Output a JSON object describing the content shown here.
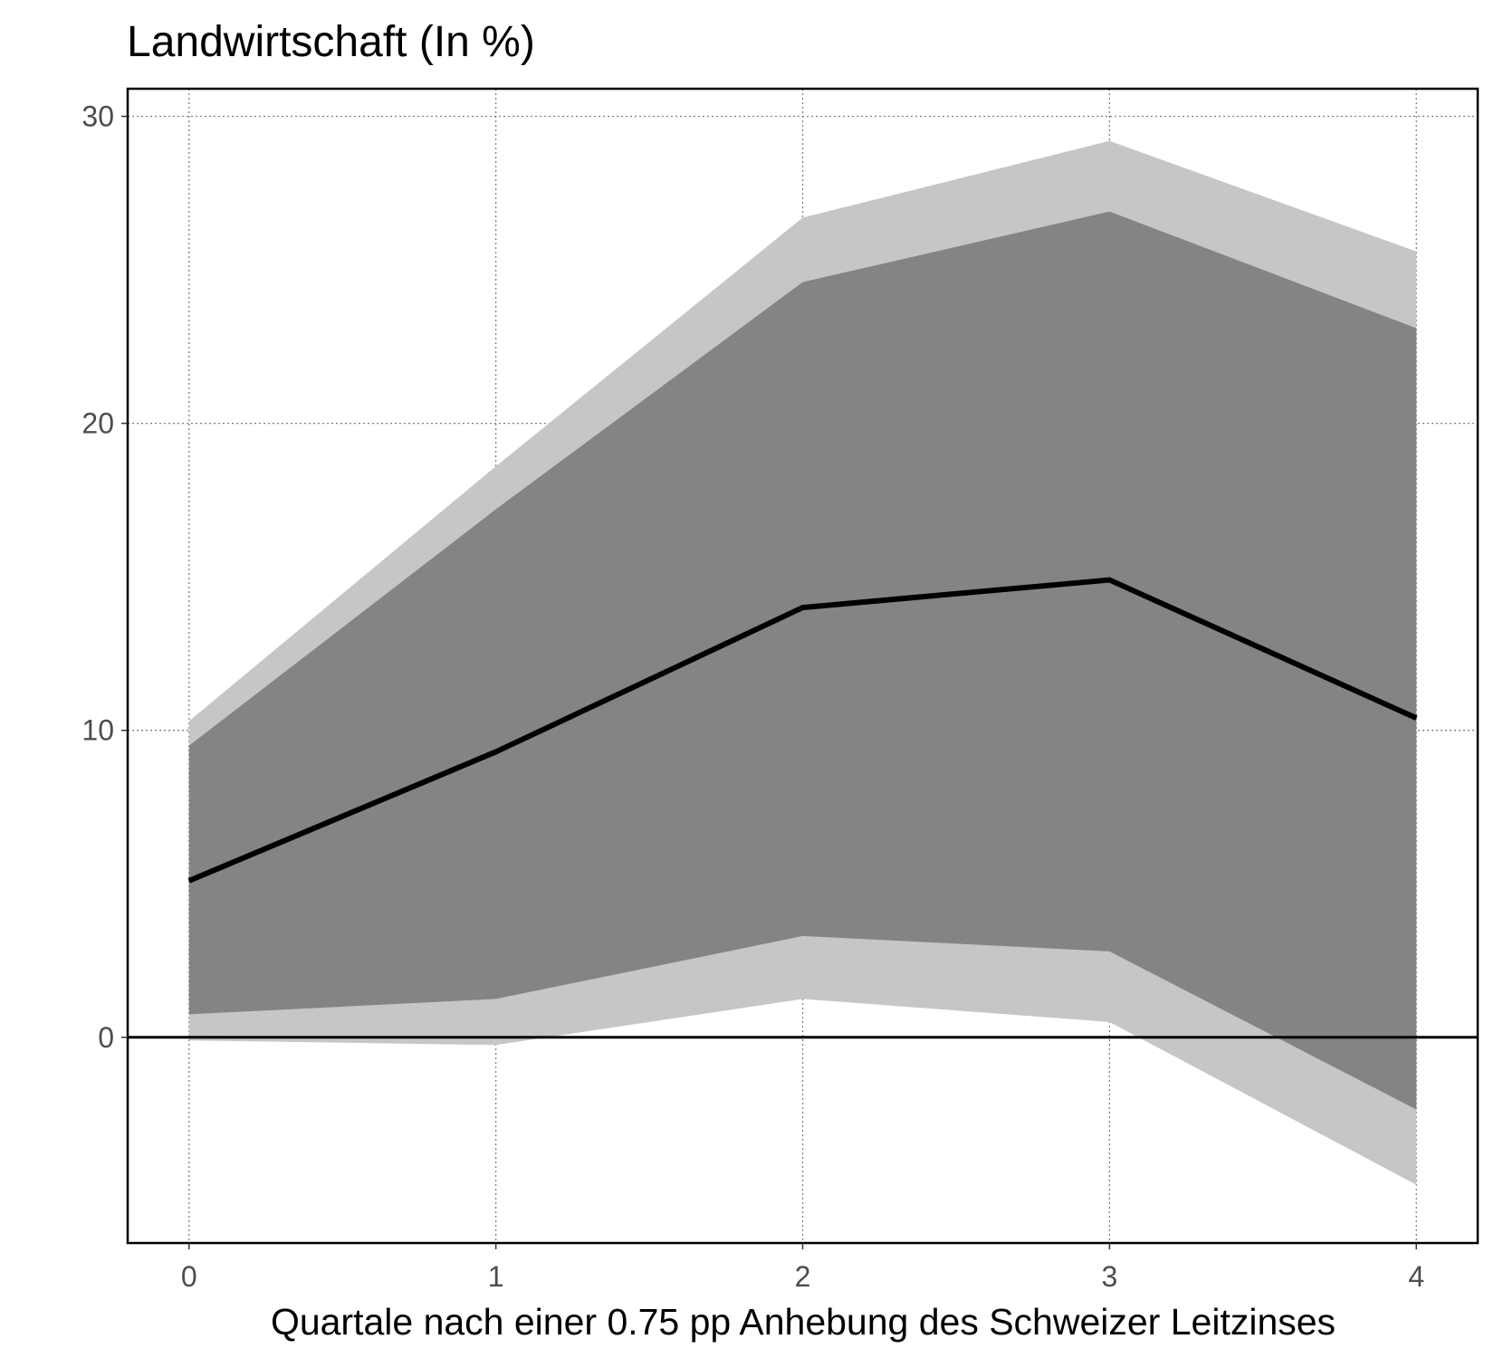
{
  "chart_data": {
    "type": "line",
    "title": "Landwirtschaft (In %)",
    "xlabel": "Quartale nach einer 0.75 pp Anhebung des Schweizer Leitzinses",
    "ylabel": "",
    "x": [
      0,
      1,
      2,
      3,
      4
    ],
    "x_ticks": [
      0,
      1,
      2,
      3,
      4
    ],
    "y_ticks": [
      0,
      10,
      20,
      30
    ],
    "xlim": [
      -0.2,
      4.2
    ],
    "ylim": [
      -6.7,
      30.9
    ],
    "grid": true,
    "grid_style": "dotted",
    "zero_line": true,
    "series": [
      {
        "role": "point-estimate",
        "values": [
          5.1,
          9.3,
          14.0,
          14.9,
          10.4
        ],
        "color": "#000000"
      }
    ],
    "bands": [
      {
        "role": "outer",
        "lower": [
          -0.1,
          -0.25,
          1.25,
          0.5,
          -4.8
        ],
        "upper": [
          10.3,
          18.6,
          26.7,
          29.2,
          25.6
        ],
        "color": "#c6c6c6"
      },
      {
        "role": "inner",
        "lower": [
          0.75,
          1.25,
          3.3,
          2.8,
          -2.35
        ],
        "upper": [
          9.5,
          17.2,
          24.6,
          26.9,
          23.1
        ],
        "color": "#848484"
      }
    ],
    "colors": {
      "outer_band": "#c6c6c6",
      "inner_band": "#848484",
      "line": "#000000",
      "grid": "#7f7f7f",
      "tick_text": "#4d4d4d"
    }
  }
}
